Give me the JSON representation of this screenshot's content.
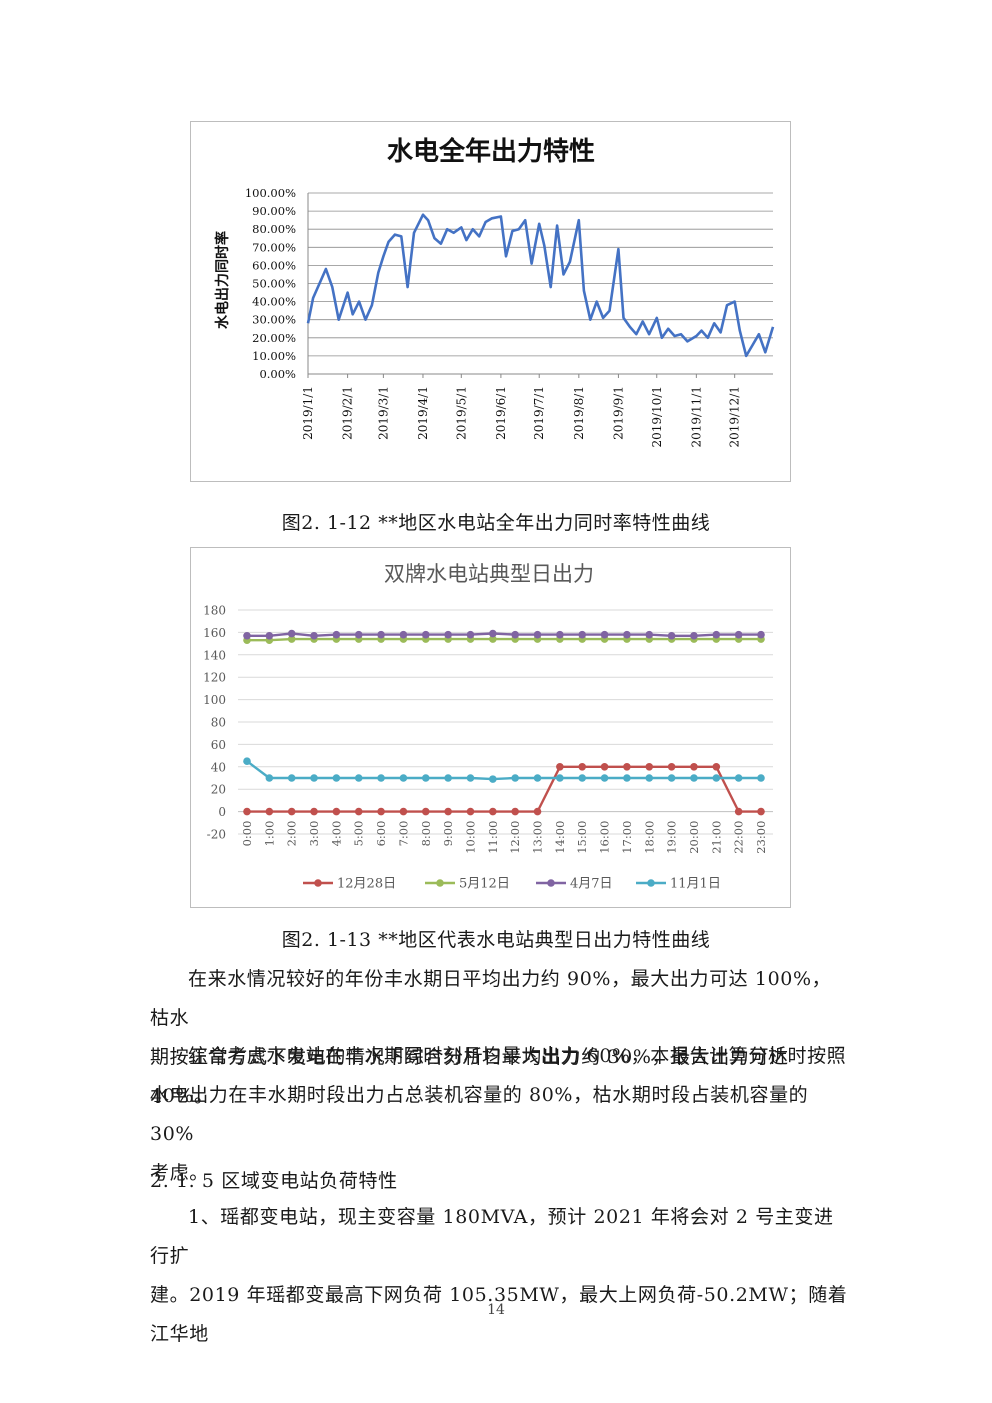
{
  "figure1": {
    "chart_data": {
      "type": "line",
      "title": "水电全年出力特性",
      "ylabel": "水电出力同时率",
      "xlabel": "",
      "ylim": [
        0,
        100
      ],
      "yticks": [
        "0.00%",
        "10.00%",
        "20.00%",
        "30.00%",
        "40.00%",
        "50.00%",
        "60.00%",
        "70.00%",
        "80.00%",
        "90.00%",
        "100.00%"
      ],
      "xticks": [
        "2019/1/1",
        "2019/2/1",
        "2019/3/1",
        "2019/4/1",
        "2019/5/1",
        "2019/6/1",
        "2019/7/1",
        "2019/8/1",
        "2019/9/1",
        "2019/10/1",
        "2019/11/1",
        "2019/12/1"
      ],
      "grid": true,
      "color": "#4472c4",
      "series": [
        {
          "x": [
            "2019/1/1",
            "2019/1/5",
            "2019/1/10",
            "2019/1/15",
            "2019/1/20",
            "2019/1/25",
            "2019/2/1",
            "2019/2/5",
            "2019/2/10",
            "2019/2/15",
            "2019/2/20",
            "2019/2/25",
            "2019/3/1",
            "2019/3/5",
            "2019/3/10",
            "2019/3/15",
            "2019/3/20",
            "2019/3/25",
            "2019/4/1",
            "2019/4/5",
            "2019/4/10",
            "2019/4/15",
            "2019/4/20",
            "2019/4/25",
            "2019/5/1",
            "2019/5/5",
            "2019/5/10",
            "2019/5/15",
            "2019/5/20",
            "2019/5/25",
            "2019/6/1",
            "2019/6/5",
            "2019/6/10",
            "2019/6/15",
            "2019/6/20",
            "2019/6/25",
            "2019/7/1",
            "2019/7/5",
            "2019/7/10",
            "2019/7/15",
            "2019/7/20",
            "2019/7/25",
            "2019/8/1",
            "2019/8/5",
            "2019/8/10",
            "2019/8/15",
            "2019/8/20",
            "2019/8/25",
            "2019/9/1",
            "2019/9/5",
            "2019/9/10",
            "2019/9/15",
            "2019/9/20",
            "2019/9/25",
            "2019/10/1",
            "2019/10/5",
            "2019/10/10",
            "2019/10/15",
            "2019/10/20",
            "2019/10/25",
            "2019/11/1",
            "2019/11/5",
            "2019/11/10",
            "2019/11/15",
            "2019/11/20",
            "2019/11/25",
            "2019/12/1",
            "2019/12/5",
            "2019/12/10",
            "2019/12/15",
            "2019/12/20",
            "2019/12/25",
            "2019/12/31"
          ],
          "values": [
            28,
            42,
            50,
            58,
            48,
            30,
            45,
            33,
            40,
            30,
            38,
            56,
            65,
            73,
            77,
            76,
            48,
            78,
            88,
            85,
            75,
            72,
            80,
            78,
            81,
            74,
            80,
            76,
            84,
            86,
            87,
            65,
            79,
            80,
            85,
            61,
            83,
            71,
            48,
            82,
            55,
            62,
            85,
            46,
            30,
            40,
            31,
            35,
            69,
            31,
            26,
            22,
            29,
            22,
            31,
            20,
            25,
            21,
            22,
            18,
            21,
            24,
            20,
            28,
            23,
            38,
            40,
            24,
            10,
            16,
            22,
            12,
            26
          ]
        }
      ]
    },
    "caption": "图2. 1-12 **地区水电站全年出力同时率特性曲线"
  },
  "figure2": {
    "chart_data": {
      "type": "line",
      "title": "双牌水电站典型日出力",
      "xlabel": "",
      "ylabel": "",
      "ylim": [
        -20,
        180
      ],
      "yticks": [
        "-20",
        "0",
        "20",
        "40",
        "60",
        "80",
        "100",
        "120",
        "140",
        "160",
        "180"
      ],
      "categories": [
        "0:00",
        "1:00",
        "2:00",
        "3:00",
        "4:00",
        "5:00",
        "6:00",
        "7:00",
        "8:00",
        "9:00",
        "10:00",
        "11:00",
        "12:00",
        "13:00",
        "14:00",
        "15:00",
        "16:00",
        "17:00",
        "18:00",
        "19:00",
        "20:00",
        "21:00",
        "22:00",
        "23:00"
      ],
      "legend_position": "bottom",
      "grid": true,
      "series": [
        {
          "name": "12月28日",
          "color": "#c0504d",
          "values": [
            0,
            0,
            0,
            0,
            0,
            0,
            0,
            0,
            0,
            0,
            0,
            0,
            0,
            0,
            40,
            40,
            40,
            40,
            40,
            40,
            40,
            40,
            0,
            0
          ]
        },
        {
          "name": "5月12日",
          "color": "#9bbb59",
          "values": [
            153,
            153,
            154,
            154,
            154,
            154,
            154,
            154,
            154,
            154,
            154,
            154,
            154,
            154,
            154,
            154,
            154,
            154,
            154,
            154,
            154,
            154,
            154,
            154
          ]
        },
        {
          "name": "4月7日",
          "color": "#8064a2",
          "values": [
            157,
            157,
            159,
            157,
            158,
            158,
            158,
            158,
            158,
            158,
            158,
            159,
            158,
            158,
            158,
            158,
            158,
            158,
            158,
            157,
            157,
            158,
            158,
            158
          ]
        },
        {
          "name": "11月1日",
          "color": "#4bacc6",
          "values": [
            45,
            30,
            30,
            30,
            30,
            30,
            30,
            30,
            30,
            30,
            30,
            29,
            30,
            30,
            30,
            30,
            30,
            30,
            30,
            30,
            30,
            30,
            30,
            30
          ]
        }
      ]
    },
    "caption": "图2. 1-13 **地区代表水电站典型日出力特性曲线"
  },
  "paragraphs": {
    "p1_line1": "在来水情况较好的年份丰水期日平均出力约 90%，最大出力可达 100%，枯水",
    "p1_line2": "期按正常方式下发电的情况下综合分析日平均出力约 30%，最大出力可达 40%。",
    "p2_line1": "综合考虑水电站在丰水期同时刻月均最大出力 60%，本报告计算分析时按照",
    "p2_line2": "水电出力在丰水期时段出力占总装机容量的 80%，枯水期时段占装机容量的 30%",
    "p2_line3": "考虑。",
    "heading": "2. 1. 5  区域变电站负荷特性",
    "p3_line1": "1、瑶都变电站，现主变容量 180MVA，预计 2021 年将会对 2 号主变进行扩",
    "p3_line2": "建。2019 年瑶都变最高下网负荷 105.35MW，最大上网负荷-50.2MW；随着江华地"
  },
  "page_number": "14"
}
